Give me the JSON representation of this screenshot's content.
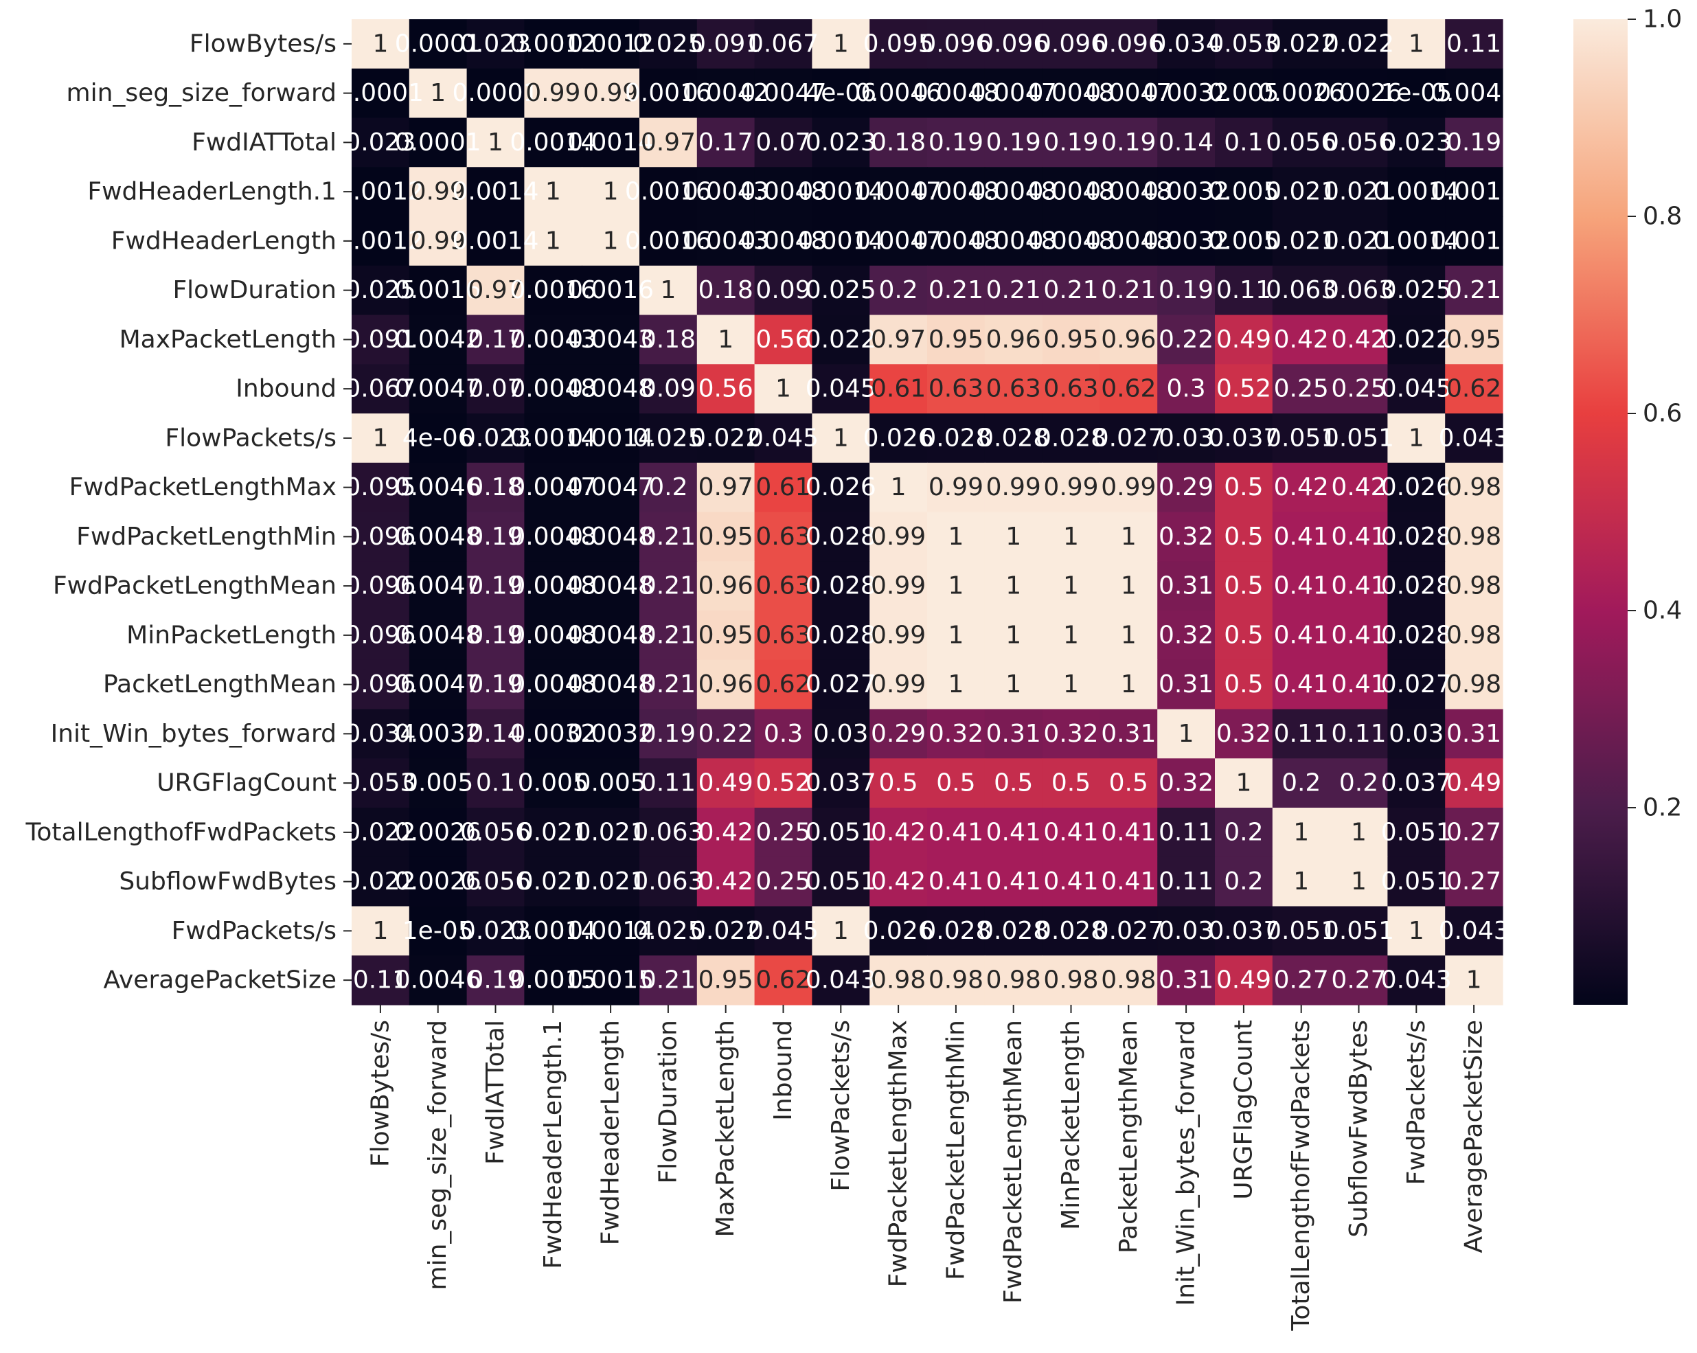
{
  "chart_data": {
    "type": "heatmap",
    "title": "",
    "xlabel": "",
    "ylabel": "",
    "labels": [
      "FlowBytes/s",
      "min_seg_size_forward",
      "FwdIATTotal",
      "FwdHeaderLength.1",
      "FwdHeaderLength",
      "FlowDuration",
      "MaxPacketLength",
      "Inbound",
      "FlowPackets/s",
      "FwdPacketLengthMax",
      "FwdPacketLengthMin",
      "FwdPacketLengthMean",
      "MinPacketLength",
      "PacketLengthMean",
      "Init_Win_bytes_forward",
      "URGFlagCount",
      "TotalLengthofFwdPackets",
      "SubflowFwdBytes",
      "FwdPackets/s",
      "AveragePacketSize"
    ],
    "cell_text": [
      [
        "1",
        "0.0001",
        "0.023",
        "0.0012",
        "0.0012",
        "0.025",
        "0.091",
        "0.067",
        "1",
        "0.095",
        "0.096",
        "0.096",
        "0.096",
        "0.096",
        "0.034",
        "0.053",
        "0.022",
        "0.022",
        "1",
        "0.11"
      ],
      [
        "0.0001",
        "1",
        "0.0001",
        "0.99",
        "0.99",
        "0.0016",
        "0.0042",
        "0.0047",
        "4e-06",
        "0.0046",
        "0.0048",
        "0.0047",
        "0.0048",
        "0.0047",
        "0.0032",
        "0.005",
        "0.0026",
        "0.0026",
        "1e-05",
        "0.0046"
      ],
      [
        "0.023",
        "0.0001",
        "1",
        "0.0014",
        "0.0014",
        "0.97",
        "0.17",
        "0.07",
        "0.023",
        "0.18",
        "0.19",
        "0.19",
        "0.19",
        "0.19",
        "0.14",
        "0.1",
        "0.056",
        "0.056",
        "0.023",
        "0.19"
      ],
      [
        "0.0012",
        "0.99",
        "0.0014",
        "1",
        "1",
        "0.0016",
        "0.0043",
        "0.0048",
        "0.0014",
        "0.0047",
        "0.0048",
        "0.0048",
        "0.0048",
        "0.0048",
        "0.0032",
        "0.005",
        "0.021",
        "0.021",
        "0.0014",
        "0.0015"
      ],
      [
        "0.0012",
        "0.99",
        "0.0014",
        "1",
        "1",
        "0.0016",
        "0.0043",
        "0.0048",
        "0.0014",
        "0.0047",
        "0.0048",
        "0.0048",
        "0.0048",
        "0.0048",
        "0.0032",
        "0.005",
        "0.021",
        "0.021",
        "0.0014",
        "0.0015"
      ],
      [
        "0.025",
        "0.0016",
        "0.97",
        "0.0016",
        "0.0016",
        "1",
        "0.18",
        "0.09",
        "0.025",
        "0.2",
        "0.21",
        "0.21",
        "0.21",
        "0.21",
        "0.19",
        "0.11",
        "0.063",
        "0.063",
        "0.025",
        "0.21"
      ],
      [
        "0.091",
        "0.0042",
        "0.17",
        "0.0043",
        "0.0043",
        "0.18",
        "1",
        "0.56",
        "0.022",
        "0.97",
        "0.95",
        "0.96",
        "0.95",
        "0.96",
        "0.22",
        "0.49",
        "0.42",
        "0.42",
        "0.022",
        "0.95"
      ],
      [
        "0.067",
        "0.0047",
        "0.07",
        "0.0048",
        "0.0048",
        "0.09",
        "0.56",
        "1",
        "0.045",
        "0.61",
        "0.63",
        "0.63",
        "0.63",
        "0.62",
        "0.3",
        "0.52",
        "0.25",
        "0.25",
        "0.045",
        "0.62"
      ],
      [
        "1",
        "4e-06",
        "0.023",
        "0.0014",
        "0.0014",
        "0.025",
        "0.022",
        "0.045",
        "1",
        "0.026",
        "0.028",
        "0.028",
        "0.028",
        "0.027",
        "0.03",
        "0.037",
        "0.051",
        "0.051",
        "1",
        "0.043"
      ],
      [
        "0.095",
        "0.0046",
        "0.18",
        "0.0047",
        "0.0047",
        "0.2",
        "0.97",
        "0.61",
        "0.026",
        "1",
        "0.99",
        "0.99",
        "0.99",
        "0.99",
        "0.29",
        "0.5",
        "0.42",
        "0.42",
        "0.026",
        "0.98"
      ],
      [
        "0.096",
        "0.0048",
        "0.19",
        "0.0048",
        "0.0048",
        "0.21",
        "0.95",
        "0.63",
        "0.028",
        "0.99",
        "1",
        "1",
        "1",
        "1",
        "0.32",
        "0.5",
        "0.41",
        "0.41",
        "0.028",
        "0.98"
      ],
      [
        "0.096",
        "0.0047",
        "0.19",
        "0.0048",
        "0.0048",
        "0.21",
        "0.96",
        "0.63",
        "0.028",
        "0.99",
        "1",
        "1",
        "1",
        "1",
        "0.31",
        "0.5",
        "0.41",
        "0.41",
        "0.028",
        "0.98"
      ],
      [
        "0.096",
        "0.0048",
        "0.19",
        "0.0048",
        "0.0048",
        "0.21",
        "0.95",
        "0.63",
        "0.028",
        "0.99",
        "1",
        "1",
        "1",
        "1",
        "0.32",
        "0.5",
        "0.41",
        "0.41",
        "0.028",
        "0.98"
      ],
      [
        "0.096",
        "0.0047",
        "0.19",
        "0.0048",
        "0.0048",
        "0.21",
        "0.96",
        "0.62",
        "0.027",
        "0.99",
        "1",
        "1",
        "1",
        "1",
        "0.31",
        "0.5",
        "0.41",
        "0.41",
        "0.027",
        "0.98"
      ],
      [
        "0.034",
        "0.0032",
        "0.14",
        "0.0032",
        "0.0032",
        "0.19",
        "0.22",
        "0.3",
        "0.03",
        "0.29",
        "0.32",
        "0.31",
        "0.32",
        "0.31",
        "1",
        "0.32",
        "0.11",
        "0.11",
        "0.03",
        "0.31"
      ],
      [
        "0.053",
        "0.005",
        "0.1",
        "0.005",
        "0.005",
        "0.11",
        "0.49",
        "0.52",
        "0.037",
        "0.5",
        "0.5",
        "0.5",
        "0.5",
        "0.5",
        "0.32",
        "1",
        "0.2",
        "0.2",
        "0.037",
        "0.49"
      ],
      [
        "0.022",
        "0.0026",
        "0.056",
        "0.021",
        "0.021",
        "0.063",
        "0.42",
        "0.25",
        "0.051",
        "0.42",
        "0.41",
        "0.41",
        "0.41",
        "0.41",
        "0.11",
        "0.2",
        "1",
        "1",
        "0.051",
        "0.27"
      ],
      [
        "0.022",
        "0.0026",
        "0.056",
        "0.021",
        "0.021",
        "0.063",
        "0.42",
        "0.25",
        "0.051",
        "0.42",
        "0.41",
        "0.41",
        "0.41",
        "0.41",
        "0.11",
        "0.2",
        "1",
        "1",
        "0.051",
        "0.27"
      ],
      [
        "1",
        "1e-05",
        "0.023",
        "0.0014",
        "0.0014",
        "0.025",
        "0.022",
        "0.045",
        "1",
        "0.026",
        "0.028",
        "0.028",
        "0.028",
        "0.027",
        "0.03",
        "0.037",
        "0.051",
        "0.051",
        "1",
        "0.043"
      ],
      [
        "0.11",
        "0.0046",
        "0.19",
        "0.0015",
        "0.0015",
        "0.21",
        "0.95",
        "0.62",
        "0.043",
        "0.98",
        "0.98",
        "0.98",
        "0.98",
        "0.98",
        "0.31",
        "0.49",
        "0.27",
        "0.27",
        "0.043",
        "1"
      ]
    ],
    "colorbar": {
      "ticks": [
        "0.2",
        "0.4",
        "0.6",
        "0.8",
        "1.0"
      ],
      "range": [
        0.0,
        1.0
      ]
    },
    "colormap": [
      "#03051a",
      "#4c1d4b",
      "#a11a5b",
      "#e83f3f",
      "#f6a47b",
      "#faebdd"
    ]
  }
}
